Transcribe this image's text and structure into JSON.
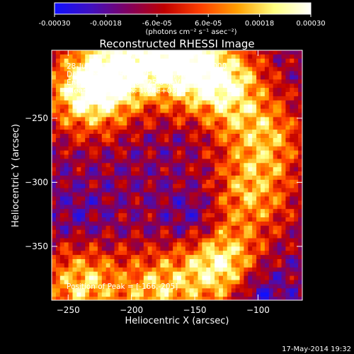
{
  "colorbar": {
    "ticks": [
      "-0.00030",
      "-0.00018",
      "-6.0e-05",
      "6.0e-05",
      "0.00018",
      "0.00030"
    ],
    "unit_label": "(photons cm⁻² s⁻¹ asec⁻²)",
    "range": [
      -0.0003,
      0.0003
    ],
    "stops": [
      "#1010ff",
      "#4010c0",
      "#800060",
      "#c00000",
      "#ff4000",
      "#ffa000",
      "#ffff80",
      "#ffffff"
    ]
  },
  "chart_data": {
    "type": "heatmap",
    "title": "Reconstructed RHESSI Image",
    "xlabel": "Heliocentric X (arcsec)",
    "ylabel": "Heliocentric Y (arcsec)",
    "xlim": [
      -263,
      -65
    ],
    "ylim": [
      -392,
      -197
    ],
    "x_ticks": [
      -250,
      -200,
      -150,
      -100
    ],
    "y_ticks": [
      -250,
      -300,
      -350
    ],
    "annotations": [
      "28-Jun-2012 04:25:00.000 to 04:27:48.000",
      "Detectors: 3F 5F 6F 7F 8F 9F, Att 0",
      "Energy Range: 12.0 - 25.0 keV",
      "Clean    Total counts: 1.98E+03"
    ],
    "peak_label": "Position of Peak = [-166,-205]",
    "peak": [
      -166,
      -205
    ],
    "bright_regions": [
      {
        "x": -235,
        "y": -230,
        "level": 0.95
      },
      {
        "x": -205,
        "y": -210,
        "level": 0.9
      },
      {
        "x": -160,
        "y": -205,
        "level": 1.0
      },
      {
        "x": -125,
        "y": -225,
        "level": 0.85
      },
      {
        "x": -240,
        "y": -380,
        "level": 0.8
      },
      {
        "x": -180,
        "y": -385,
        "level": 0.75
      },
      {
        "x": -130,
        "y": -365,
        "level": 0.9
      },
      {
        "x": -105,
        "y": -310,
        "level": 0.7
      },
      {
        "x": -95,
        "y": -265,
        "level": 0.7
      }
    ],
    "dark_regions": [
      {
        "x": -150,
        "y": -330,
        "level": 0.1
      },
      {
        "x": -100,
        "y": -385,
        "level": 0.05
      },
      {
        "x": -240,
        "y": -330,
        "level": 0.2
      }
    ]
  },
  "footer": {
    "date": "17-May-2014 19:32"
  }
}
